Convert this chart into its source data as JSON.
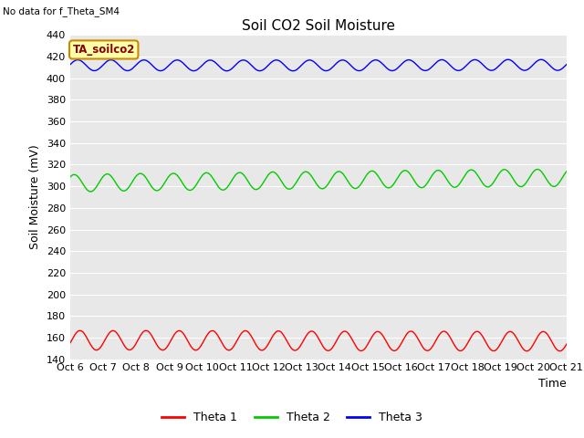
{
  "title": "Soil CO2 Soil Moisture",
  "no_data_text": "No data for f_Theta_SM4",
  "ylabel": "Soil Moisture (mV)",
  "xlabel": "Time",
  "annotation": "TA_soilco2",
  "xlim": [
    0,
    15
  ],
  "ylim": [
    140,
    440
  ],
  "yticks": [
    140,
    160,
    180,
    200,
    220,
    240,
    260,
    280,
    300,
    320,
    340,
    360,
    380,
    400,
    420,
    440
  ],
  "xtick_labels": [
    "Oct 6",
    "Oct 7",
    "Oct 8",
    "Oct 9",
    "Oct 10",
    "Oct 11",
    "Oct 12",
    "Oct 13",
    "Oct 14",
    "Oct 15",
    "Oct 16",
    "Oct 17",
    "Oct 18",
    "Oct 19",
    "Oct 20",
    "Oct 21"
  ],
  "theta1_color": "#ff0000",
  "theta2_color": "#00cc00",
  "theta3_color": "#0000ff",
  "theta1_label": "Theta 1",
  "theta2_label": "Theta 2",
  "theta3_label": "Theta 3",
  "plot_bg_color": "#e8e8e8",
  "fig_bg_color": "#ffffff",
  "grid_color": "#ffffff",
  "theta1_base": 157,
  "theta1_amplitude": 9,
  "theta2_base": 303,
  "theta2_amplitude": 8,
  "theta3_base": 412,
  "theta3_amplitude": 5,
  "n_points": 900,
  "title_fontsize": 11,
  "tick_fontsize": 8,
  "label_fontsize": 9
}
